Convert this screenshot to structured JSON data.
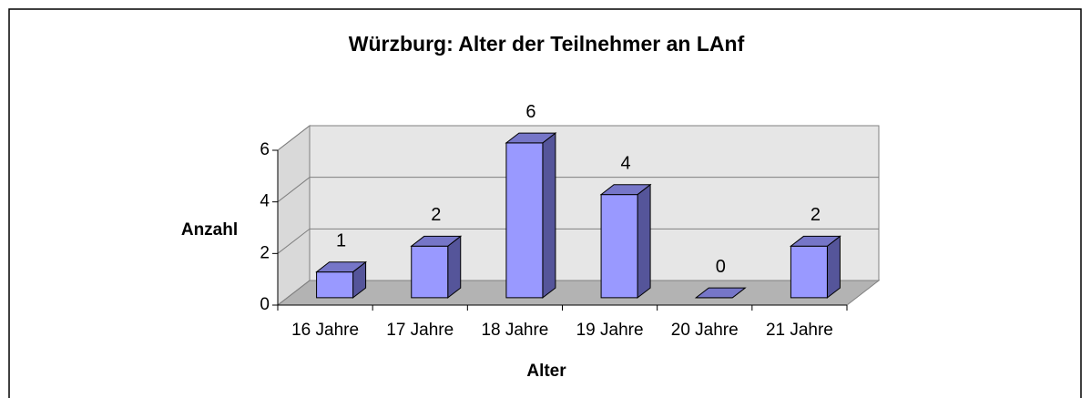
{
  "chart_data": {
    "type": "bar3d",
    "title": "Würzburg: Alter der Teilnehmer an LAnf",
    "x_label": "Alter",
    "y_label": "Anzahl",
    "categories": [
      "16 Jahre",
      "17 Jahre",
      "18 Jahre",
      "19 Jahre",
      "20 Jahre",
      "21 Jahre"
    ],
    "values": [
      1,
      2,
      6,
      4,
      0,
      2
    ],
    "color": "#9999ff",
    "ylim": [
      0,
      6
    ],
    "yticks": [
      0,
      2,
      4,
      6
    ],
    "grid": true
  }
}
